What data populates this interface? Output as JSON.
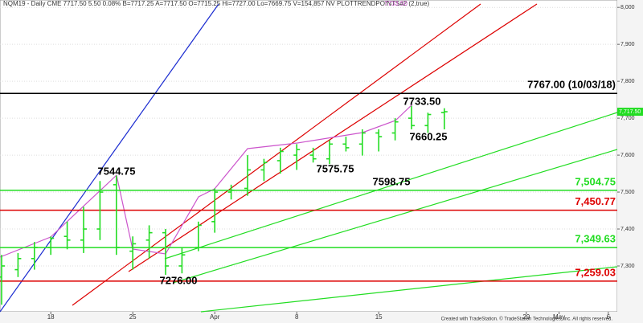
{
  "chart_data": {
    "type": "ohlc",
    "header": "NQM19 - Daily CME 7717.50 5.50 0.08% B=7717.25 A=7717.50 O=7715.25 Hi=7727.00 Lo=7669.75 V=154,857 NV PLOTTRENDPOINTS#2 (2,true)",
    "header_extra": "7733.50",
    "footer": "Created with TradeStation. © TradeStation Technologies, Inc. All rights reserved.",
    "color": "#22dd22",
    "categories": [
      null,
      null,
      null,
      "18",
      null,
      null,
      null,
      null,
      "25",
      null,
      null,
      null,
      null,
      "Apr",
      null,
      null,
      null,
      null,
      "8",
      null,
      null,
      null,
      null,
      "15",
      null,
      null,
      null,
      null,
      null,
      null,
      null,
      null,
      "29",
      null,
      "May",
      null,
      null,
      "6"
    ],
    "open": [
      7270,
      7290,
      7320,
      7350,
      7380,
      7370,
      7400,
      7520,
      7340,
      7370,
      7390,
      7300,
      7350,
      7420,
      7500,
      7510,
      7560,
      7585,
      7600,
      7600,
      7590,
      7630,
      7630,
      7660,
      7660,
      7700,
      7680,
      7715.25,
      null,
      null,
      null,
      null,
      null,
      null,
      null,
      null,
      null,
      null
    ],
    "high": [
      7330,
      7335,
      7365,
      7380,
      7420,
      7460,
      7530,
      7544.75,
      7380,
      7410,
      7400,
      7350,
      7420,
      7510,
      7520,
      7600,
      7590,
      7620,
      7630,
      7620,
      7640,
      7650,
      7670,
      7670,
      7700,
      7733.5,
      7715,
      7727,
      null,
      null,
      null,
      null,
      null,
      null,
      null,
      null,
      null,
      null
    ],
    "low": [
      7195,
      7270,
      7290,
      7330,
      7345,
      7335,
      7370,
      7330,
      7290,
      7320,
      7276,
      7280,
      7340,
      7390,
      7480,
      7490,
      7530,
      7550,
      7560,
      7580,
      7575.75,
      7610,
      7598.75,
      7610,
      7640,
      7670,
      7660.25,
      7669.75,
      null,
      null,
      null,
      null,
      null,
      null,
      null,
      null,
      null,
      null
    ],
    "close": [
      7300,
      7320,
      7350,
      7375,
      7370,
      7400,
      7500,
      7350,
      7360,
      7390,
      7300,
      7330,
      7410,
      7500,
      7505,
      7560,
      7580,
      7610,
      7615,
      7590,
      7630,
      7620,
      7660,
      7650,
      7690,
      7680,
      7710,
      7717.5,
      null,
      null,
      null,
      null,
      null,
      null,
      null,
      null,
      null,
      null
    ],
    "ylim": [
      7176,
      8020
    ],
    "yticks": [
      {
        "value": 7300,
        "label": "7,300"
      },
      {
        "value": 7400,
        "label": "7,400"
      },
      {
        "value": 7500,
        "label": "7,500"
      },
      {
        "value": 7600,
        "label": "7,600"
      },
      {
        "value": 7700,
        "label": "7,700"
      },
      {
        "value": 7800,
        "label": "7,800"
      },
      {
        "value": 7900,
        "label": "7,900"
      },
      {
        "value": 8000,
        "label": "8,000"
      }
    ],
    "grid": true,
    "last_price": {
      "value": 7717.5,
      "label": "7,717.50"
    },
    "levels": [
      {
        "value": 7767,
        "label": "7767.00 (10/03/18)",
        "color": "#000000"
      },
      {
        "value": 7504.75,
        "label": "7,504.75",
        "color": "#22dd22"
      },
      {
        "value": 7450.77,
        "label": "7,450.77",
        "color": "#dd0000"
      },
      {
        "value": 7349.63,
        "label": "7,349.63",
        "color": "#22dd22"
      },
      {
        "value": 7259.03,
        "label": "7,259.03",
        "color": "#dd0000"
      }
    ],
    "annotations": [
      "7544.75",
      "7276.00",
      "7575.75",
      "7598.75",
      "7660.25",
      "7733.50"
    ]
  }
}
